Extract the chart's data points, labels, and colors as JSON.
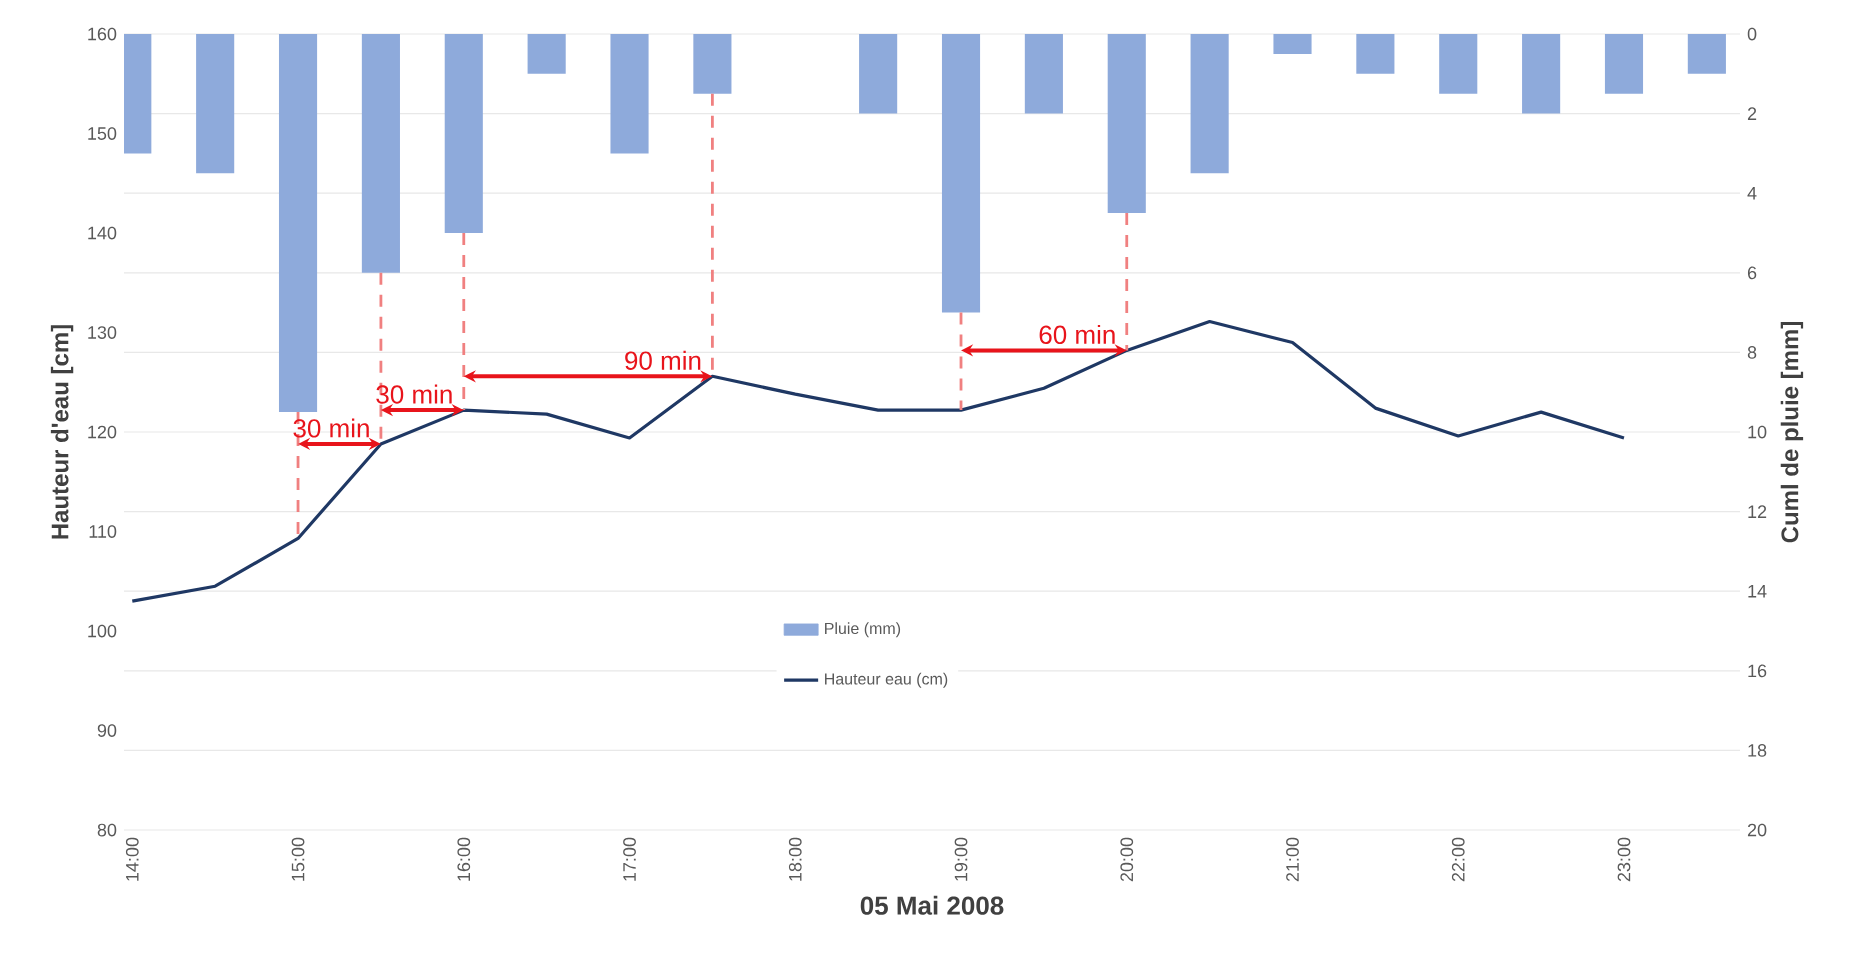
{
  "chart_data": {
    "type": "bar",
    "xlabel": "05 Mai 2008",
    "ylabel": "Hauteur d'eau [cm]",
    "y2label": "Cuml de pluie [mm]",
    "series": [
      {
        "name": "Pluie (mm)",
        "axis": "y2",
        "color": "#8eaadb",
        "x": [
          14,
          14.5,
          15,
          15.5,
          16,
          16.5,
          17,
          17.5,
          18,
          18.5,
          19,
          19.5,
          20,
          20.5,
          21,
          21.5,
          22,
          22.5,
          23,
          23.5
        ],
        "values": [
          3,
          3.5,
          9.5,
          6,
          5,
          1,
          3,
          1.5,
          0,
          2,
          7,
          2,
          4.5,
          3.5,
          0.5,
          1,
          1.5,
          2,
          1.5,
          1
        ]
      },
      {
        "name": "Hauteur eau (cm)",
        "type": "line",
        "color": "#1f3864",
        "x": [
          14,
          14.5,
          15,
          15.5,
          16,
          16.5,
          17,
          17.5,
          18,
          18.5,
          19,
          19.5,
          20,
          20.5,
          21,
          21.5,
          22,
          22.5,
          23
        ],
        "values": [
          103,
          104.5,
          109.3,
          118.8,
          122.2,
          121.8,
          119.4,
          125.6,
          123.8,
          122.2,
          122.2,
          124.4,
          128.2,
          131.1,
          129,
          122.4,
          119.6,
          122,
          119.4
        ]
      }
    ],
    "xlim": [
      13.95,
      23.7
    ],
    "xticks": [
      {
        "value": 14,
        "label": "14:00"
      },
      {
        "value": 15,
        "label": "15:00"
      },
      {
        "value": 16,
        "label": "16:00"
      },
      {
        "value": 17,
        "label": "17:00"
      },
      {
        "value": 18,
        "label": "18:00"
      },
      {
        "value": 19,
        "label": "19:00"
      },
      {
        "value": 20,
        "label": "20:00"
      },
      {
        "value": 21,
        "label": "21:00"
      },
      {
        "value": 22,
        "label": "22:00"
      },
      {
        "value": 23,
        "label": "23:00"
      }
    ],
    "ylim": [
      80,
      160
    ],
    "yticks": [
      80,
      90,
      100,
      110,
      120,
      130,
      140,
      150,
      160
    ],
    "y2lim": [
      20,
      0
    ],
    "y2ticks": [
      0,
      2,
      4,
      6,
      8,
      10,
      12,
      14,
      16,
      18,
      20
    ],
    "grid": "y",
    "legend": "bottom",
    "ref_lines": [
      {
        "axis": "x",
        "value": 15,
        "color": "#f08080",
        "line_style": "dashed"
      },
      {
        "axis": "x",
        "value": 15.5,
        "color": "#f08080",
        "line_style": "dashed"
      },
      {
        "axis": "x",
        "value": 16,
        "color": "#f08080",
        "line_style": "dashed"
      },
      {
        "axis": "x",
        "value": 17.5,
        "color": "#f08080",
        "line_style": "dashed"
      },
      {
        "axis": "x",
        "value": 19,
        "color": "#f08080",
        "line_style": "dashed"
      },
      {
        "axis": "x",
        "value": 20,
        "color": "#f08080",
        "line_style": "dashed"
      }
    ],
    "annotations": [
      {
        "text": "30 min",
        "x": 15.5,
        "y": 118.8
      },
      {
        "text": "30 min",
        "x": 16,
        "y": 122.2
      },
      {
        "text": "90 min",
        "x": 17.5,
        "y": 125.6
      },
      {
        "text": "60 min",
        "x": 20,
        "y": 128.2
      }
    ]
  }
}
